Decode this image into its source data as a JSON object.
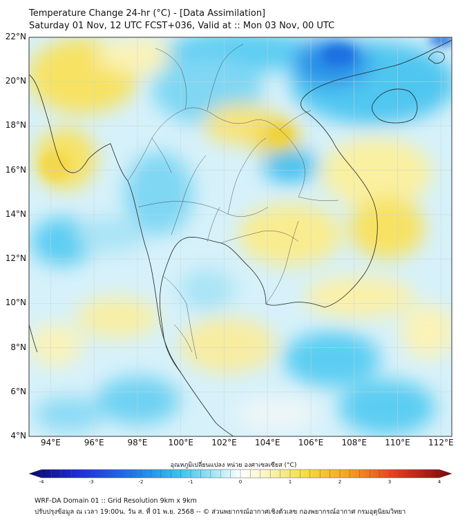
{
  "title": {
    "line1": "Temperature Change 24-hr (°C) - [Data Assimilation]",
    "line2": "Saturday 01 Nov, 12 UTC FCST+036, Valid at :: Mon 03 Nov, 00 UTC"
  },
  "map": {
    "lat_range": [
      4,
      22
    ],
    "lon_range": [
      93,
      112.5
    ],
    "lat_labels": [
      "22°N",
      "20°N",
      "18°N",
      "16°N",
      "14°N",
      "12°N",
      "10°N",
      "8°N",
      "6°N",
      "4°N"
    ],
    "lon_labels": [
      "94°E",
      "96°E",
      "98°E",
      "100°E",
      "102°E",
      "104°E",
      "106°E",
      "108°E",
      "110°E",
      "112°E"
    ],
    "grid": true,
    "field_colors": {
      "cool_strong": "#2a8fe8",
      "cool": "#5ccdf2",
      "cool_light": "#aee6f8",
      "neutral": "#eef6f8",
      "warm_light": "#faf3b0",
      "warm": "#f7e263"
    }
  },
  "colorbar": {
    "label": "อุณหภูมิเปลี่ยนแปลง หน่วย องศาเซลเซียส (°C)",
    "ticks": [
      "-4",
      "-3",
      "-2",
      "-1",
      "0",
      "1",
      "2",
      "3",
      "4"
    ],
    "range": [
      -4,
      4
    ]
  },
  "footer": {
    "line1": "WRF-DA Domain 01 :: Grid Resolution 9km x 9km",
    "line2": "ปรับปรุงข้อมูล ณ เวลา 19:00น. วัน ส. ที่ 01 พ.ย. 2568 -- © ส่วนพยากรณ์อากาศเชิงตัวเลข กองพยากรณ์อากาศ กรมอุตุนิยมวิทยา"
  }
}
